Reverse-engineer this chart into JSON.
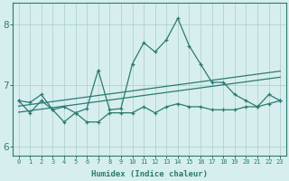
{
  "xlabel": "Humidex (Indice chaleur)",
  "x": [
    0,
    1,
    2,
    3,
    4,
    5,
    6,
    7,
    8,
    9,
    10,
    11,
    12,
    13,
    14,
    15,
    16,
    17,
    18,
    19,
    20,
    21,
    22,
    23
  ],
  "y_main": [
    6.75,
    6.72,
    6.85,
    6.6,
    6.65,
    6.55,
    6.62,
    7.25,
    6.6,
    6.62,
    7.35,
    7.7,
    7.55,
    7.75,
    8.1,
    7.65,
    7.35,
    7.05,
    7.05,
    6.85,
    6.75,
    6.65,
    6.85,
    6.75
  ],
  "y_lower": [
    6.75,
    6.55,
    6.75,
    6.6,
    6.4,
    6.55,
    6.4,
    6.4,
    6.55,
    6.55,
    6.55,
    6.65,
    6.55,
    6.65,
    6.7,
    6.65,
    6.65,
    6.6,
    6.6,
    6.6,
    6.65,
    6.65,
    6.7,
    6.75
  ],
  "reg1": [
    6.56,
    6.585,
    6.61,
    6.635,
    6.66,
    6.685,
    6.71,
    6.735,
    6.76,
    6.785,
    6.81,
    6.835,
    6.86,
    6.885,
    6.91,
    6.935,
    6.96,
    6.985,
    7.01,
    7.035,
    7.06,
    7.085,
    7.11,
    7.135
  ],
  "reg2": [
    6.66,
    6.685,
    6.71,
    6.735,
    6.76,
    6.785,
    6.81,
    6.835,
    6.86,
    6.885,
    6.91,
    6.935,
    6.96,
    6.985,
    7.01,
    7.035,
    7.06,
    7.085,
    7.11,
    7.135,
    7.16,
    7.185,
    7.21,
    7.235
  ],
  "line_color": "#2a7b6f",
  "bg_color": "#d7eeee",
  "grid_color": "#aacccc",
  "ylim": [
    5.85,
    8.35
  ],
  "yticks": [
    6,
    7,
    8
  ],
  "xlim": [
    -0.5,
    23.5
  ]
}
